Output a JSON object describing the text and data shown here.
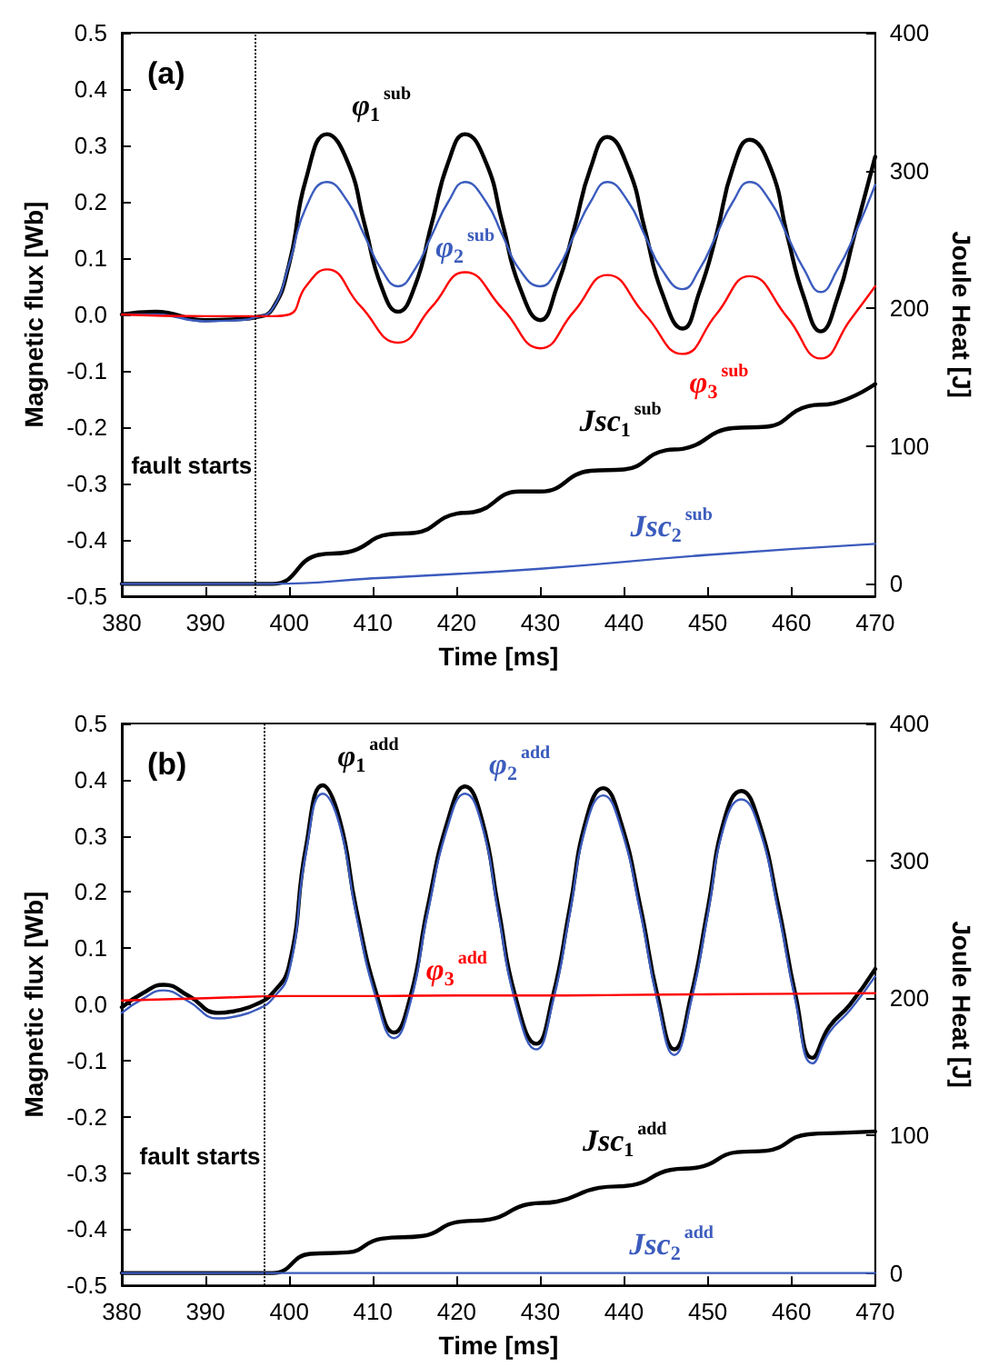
{
  "chart_data": [
    {
      "type": "line",
      "xlabel": "Time [ms]",
      "ylabel": "Magnetic flux [Wb]",
      "y2label": "Joule Heat [J]",
      "annotations": [
        "(a)"
      ],
      "xlim": [
        380,
        470
      ],
      "xticks": [
        380,
        390,
        400,
        410,
        420,
        430,
        440,
        450,
        460,
        470
      ],
      "ylim": [
        -0.5,
        0.5
      ],
      "yticks": [
        -0.5,
        -0.4,
        -0.3,
        -0.2,
        -0.1,
        {
          "value": 0,
          "label": "0.0"
        },
        0.1,
        0.2,
        0.3,
        0.4,
        0.5
      ],
      "y2lim": [
        -9,
        400
      ],
      "y2ticks": [
        0,
        100,
        200,
        300,
        400
      ],
      "ref_lines": [
        {
          "axis": "x",
          "value": 396,
          "label": "fault starts",
          "line_style": "dotted",
          "color": "#000000"
        }
      ],
      "series": [
        {
          "name": "φ$_{1}$$^{sub}$",
          "color": "#000000",
          "x": [
            380,
            384,
            390,
            394,
            396,
            398,
            400,
            402,
            404.5,
            407,
            409,
            411,
            413,
            415,
            417,
            419,
            421,
            423.5,
            425.5,
            427.5,
            430,
            432,
            434,
            436,
            438,
            440.5,
            442.5,
            444.5,
            447,
            449,
            451,
            453,
            455,
            457.5,
            459.5,
            461.5,
            463.5,
            465.5,
            467.5,
            470
          ],
          "values": [
            0,
            0.005,
            -0.01,
            -0.008,
            -0.005,
            0.01,
            0.09,
            0.24,
            0.32,
            0.27,
            0.16,
            0.05,
            0.005,
            0.05,
            0.16,
            0.27,
            0.32,
            0.27,
            0.16,
            0.05,
            -0.01,
            0.05,
            0.15,
            0.26,
            0.315,
            0.26,
            0.15,
            0.04,
            -0.025,
            0.04,
            0.14,
            0.26,
            0.31,
            0.26,
            0.14,
            0.03,
            -0.03,
            0.03,
            0.14,
            0.28
          ]
        },
        {
          "name": "φ$_{2}$$^{sub}$",
          "color": "#3b5bbd",
          "x": [
            380,
            384,
            390,
            394,
            396,
            398,
            400,
            402,
            404.5,
            407,
            409,
            411,
            413,
            415,
            417,
            419,
            421,
            423.5,
            425.5,
            427.5,
            430,
            432,
            434,
            436,
            438,
            440.5,
            442.5,
            444.5,
            447,
            449,
            451,
            453,
            455,
            457.5,
            459.5,
            461.5,
            463.5,
            465.5,
            467.5,
            470
          ],
          "values": [
            0,
            0,
            -0.012,
            -0.01,
            -0.005,
            0.01,
            0.09,
            0.19,
            0.235,
            0.2,
            0.14,
            0.08,
            0.05,
            0.08,
            0.14,
            0.2,
            0.235,
            0.2,
            0.14,
            0.08,
            0.05,
            0.08,
            0.14,
            0.2,
            0.235,
            0.2,
            0.14,
            0.08,
            0.045,
            0.08,
            0.14,
            0.2,
            0.235,
            0.2,
            0.14,
            0.08,
            0.04,
            0.08,
            0.14,
            0.23
          ]
        },
        {
          "name": "φ$_{3}$$^{sub}$",
          "color": "#ff0000",
          "x": [
            380,
            390,
            398,
            400,
            402,
            404.5,
            408.5,
            413,
            417,
            421,
            425.5,
            430,
            434,
            438,
            442.5,
            447,
            451,
            455,
            459.5,
            463.5,
            467,
            470
          ],
          "values": [
            0,
            -0.003,
            -0.003,
            0,
            0.05,
            0.08,
            0.015,
            -0.05,
            0.013,
            0.075,
            0.01,
            -0.06,
            0.005,
            0.07,
            0,
            -0.07,
            0,
            0.068,
            -0.005,
            -0.078,
            -0.01,
            0.05
          ]
        },
        {
          "name": "Jsc$_{1}$$^{sub}$",
          "color": "#000000",
          "axis": "y2",
          "x": [
            380,
            398,
            403.5,
            407,
            412,
            415,
            420,
            422,
            427.5,
            430,
            436,
            440,
            445,
            447,
            453,
            457,
            462,
            465,
            470
          ],
          "values": [
            0,
            0,
            21,
            23,
            36,
            37,
            51,
            52,
            67,
            67,
            82,
            83,
            97,
            98,
            113,
            114,
            129,
            131,
            145
          ]
        },
        {
          "name": "Jsc$_{2}$$^{sub}$",
          "color": "#3b5bbd",
          "axis": "y2",
          "x": [
            380,
            398,
            410,
            430,
            450,
            470
          ],
          "values": [
            0,
            0,
            4,
            11,
            21,
            29
          ]
        }
      ]
    },
    {
      "type": "line",
      "xlabel": "Time [ms]",
      "ylabel": "Magnetic flux [Wb]",
      "y2label": "Joule Heat [J]",
      "annotations": [
        "(b)"
      ],
      "xlim": [
        380,
        470
      ],
      "xticks": [
        380,
        390,
        400,
        410,
        420,
        430,
        440,
        450,
        460,
        470
      ],
      "ylim": [
        -0.5,
        0.5
      ],
      "yticks": [
        -0.5,
        -0.4,
        -0.3,
        -0.2,
        -0.1,
        {
          "value": 0,
          "label": "0.0"
        },
        0.1,
        0.2,
        0.3,
        0.4,
        0.5
      ],
      "y2lim": [
        -9,
        400
      ],
      "y2ticks": [
        0,
        100,
        200,
        300,
        400
      ],
      "ref_lines": [
        {
          "axis": "x",
          "value": 397,
          "label": "fault starts",
          "line_style": "dotted",
          "color": "#000000"
        }
      ],
      "series": [
        {
          "name": "φ$_{1}$$^{add}$",
          "color": "#000000",
          "x": [
            380,
            382.5,
            385,
            388,
            391.5,
            394,
            396,
            398,
            400,
            402,
            404,
            406,
            408,
            410.5,
            412.5,
            414.5,
            416.5,
            419,
            421,
            423,
            425,
            427,
            429.5,
            431.5,
            433.5,
            435.5,
            437.5,
            439.5,
            442,
            444,
            446,
            448,
            450,
            452,
            454,
            456,
            458.5,
            460.5,
            462.5,
            464.5,
            467,
            470
          ],
          "values": [
            -0.005,
            0.02,
            0.035,
            0.015,
            -0.015,
            -0.01,
            0,
            0.02,
            0.07,
            0.28,
            0.39,
            0.33,
            0.17,
            0.015,
            -0.05,
            0.015,
            0.17,
            0.33,
            0.388,
            0.33,
            0.17,
            0.015,
            -0.07,
            0.015,
            0.17,
            0.33,
            0.385,
            0.33,
            0.17,
            0.015,
            -0.08,
            0.015,
            0.17,
            0.33,
            0.38,
            0.33,
            0.17,
            0.015,
            -0.095,
            -0.04,
            0,
            0.063
          ]
        },
        {
          "name": "φ$_{2}$$^{add}$",
          "color": "#3b5bbd",
          "x": [
            380,
            382.5,
            385,
            388,
            391.5,
            394,
            396,
            398,
            400,
            402,
            404,
            406,
            408,
            410.5,
            412.5,
            414.5,
            416.5,
            419,
            421,
            423,
            425,
            427,
            429.5,
            431.5,
            433.5,
            435.5,
            437.5,
            439.5,
            442,
            444,
            446,
            448,
            450,
            452,
            454,
            456,
            458.5,
            460.5,
            462.5,
            464.5,
            467,
            470
          ],
          "values": [
            -0.015,
            0.01,
            0.025,
            0.005,
            -0.025,
            -0.02,
            -0.01,
            0.01,
            0.06,
            0.27,
            0.375,
            0.32,
            0.16,
            0.005,
            -0.06,
            0.005,
            0.16,
            0.32,
            0.375,
            0.32,
            0.16,
            0.005,
            -0.08,
            0.005,
            0.16,
            0.32,
            0.372,
            0.32,
            0.16,
            0.005,
            -0.09,
            0.005,
            0.16,
            0.32,
            0.365,
            0.32,
            0.16,
            0.005,
            -0.105,
            -0.05,
            -0.01,
            0.05
          ]
        },
        {
          "name": "φ$_{3}$$^{add}$",
          "color": "#ff0000",
          "x": [
            380,
            390,
            400,
            410,
            420,
            430,
            440,
            450,
            460,
            470
          ],
          "values": [
            0.007,
            0.011,
            0.015,
            0.015,
            0.016,
            0.016,
            0.017,
            0.018,
            0.019,
            0.02
          ]
        },
        {
          "name": "Jsc$_{1}$$^{add}$",
          "color": "#000000",
          "axis": "y2",
          "x": [
            380,
            398,
            402.5,
            407,
            411,
            416,
            420,
            424,
            428.5,
            432,
            437,
            441,
            445.5,
            449,
            453.5,
            457,
            462,
            466,
            470
          ],
          "values": [
            0,
            0,
            14,
            15,
            25,
            27,
            37,
            39,
            50,
            52,
            62,
            64,
            75,
            77,
            88,
            89,
            101,
            102,
            103
          ]
        },
        {
          "name": "Jsc$_{2}$$^{add}$",
          "color": "#3b5bbd",
          "axis": "y2",
          "x": [
            380,
            398,
            410,
            430,
            450,
            470
          ],
          "values": [
            0,
            0,
            0,
            0,
            0,
            0
          ]
        }
      ]
    }
  ]
}
